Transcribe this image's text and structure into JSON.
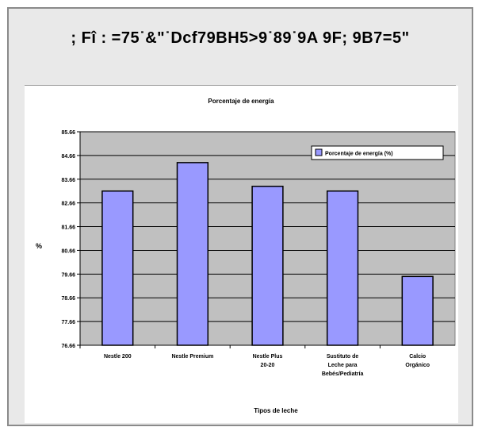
{
  "page": {
    "header_title": "; Fî : =75˙&\"˙Dcf79BH5>9˙89˙9A 9F; 9B7=5\""
  },
  "chart_data": {
    "type": "bar",
    "title": "Porcentaje de energía",
    "xlabel": "Tipos de leche",
    "ylabel": "%",
    "categories": [
      "Nestle 200",
      "Nestle Premium",
      "Nestle Plus 20-20",
      "Sustituto de Leche para Bebés/Pediatría",
      "Calcio Orgánico"
    ],
    "series": [
      {
        "name": "Porcentaje de energía (%)",
        "values": [
          82.5,
          83.7,
          82.7,
          82.5,
          78.9
        ]
      }
    ],
    "ylim": [
      76,
      85
    ],
    "yticks": [
      "76.66",
      "77.66",
      "78.66",
      "79.66",
      "80.66",
      "81.66",
      "82.66",
      "83.66",
      "84.66",
      "85.66"
    ],
    "grid": true,
    "legend_position": "top-right",
    "colors": {
      "bar": "#9999ff",
      "plot_bg": "#c0c0c0",
      "bar_stroke": "#000000"
    }
  }
}
